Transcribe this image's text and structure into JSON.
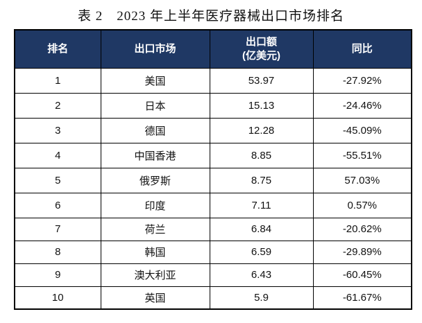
{
  "page": {
    "title": "表 2　2023 年上半年医疗器械出口市场排名"
  },
  "colors": {
    "header_bg": "#1F3864",
    "header_text": "#FFFFFF",
    "border": "#000000",
    "body_text": "#111111",
    "page_bg": "#FFFFFF"
  },
  "table": {
    "headers": {
      "rank": "排名",
      "market": "出口市场",
      "value_line1": "出口额",
      "value_line2": "(亿美元)",
      "yoy": "同比"
    },
    "rows": [
      {
        "rank": "1",
        "market": "美国",
        "value": "53.97",
        "yoy": "-27.92%"
      },
      {
        "rank": "2",
        "market": "日本",
        "value": "15.13",
        "yoy": "-24.46%"
      },
      {
        "rank": "3",
        "market": "德国",
        "value": "12.28",
        "yoy": "-45.09%"
      },
      {
        "rank": "4",
        "market": "中国香港",
        "value": "8.85",
        "yoy": "-55.51%"
      },
      {
        "rank": "5",
        "market": "俄罗斯",
        "value": "8.75",
        "yoy": "57.03%"
      },
      {
        "rank": "6",
        "market": "印度",
        "value": "7.11",
        "yoy": "0.57%"
      },
      {
        "rank": "7",
        "market": "荷兰",
        "value": "6.84",
        "yoy": "-20.62%"
      },
      {
        "rank": "8",
        "market": "韩国",
        "value": "6.59",
        "yoy": "-29.89%"
      },
      {
        "rank": "9",
        "market": "澳大利亚",
        "value": "6.43",
        "yoy": "-60.45%"
      },
      {
        "rank": "10",
        "market": "英国",
        "value": "5.9",
        "yoy": "-61.67%"
      }
    ]
  }
}
